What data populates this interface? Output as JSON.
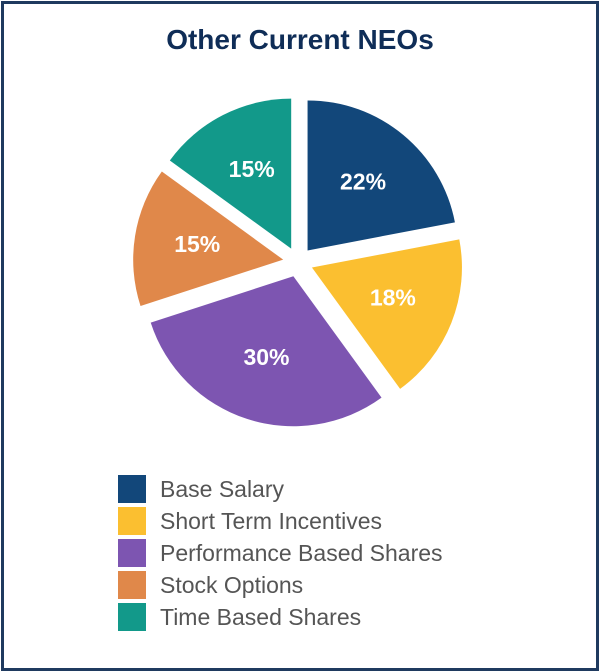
{
  "chart_data": {
    "type": "pie",
    "title": "Other Current NEOs",
    "slices": [
      {
        "label": "Base Salary",
        "value": 22,
        "value_label": "22%",
        "color": "#12477a"
      },
      {
        "label": "Short Term Incentives",
        "value": 18,
        "value_label": "18%",
        "color": "#fbbf30"
      },
      {
        "label": "Performance Based Shares",
        "value": 30,
        "value_label": "30%",
        "color": "#7d55b1"
      },
      {
        "label": "Stock Options",
        "value": 15,
        "value_label": "15%",
        "color": "#e0884a"
      },
      {
        "label": "Time Based Shares",
        "value": 15,
        "value_label": "15%",
        "color": "#12998a"
      }
    ],
    "legend_position": "bottom"
  }
}
